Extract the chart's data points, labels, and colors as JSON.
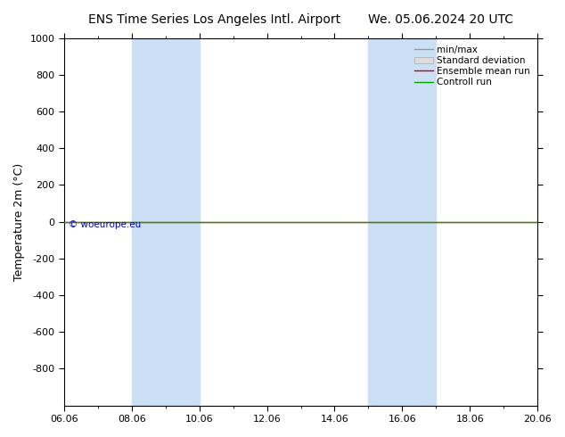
{
  "title_left": "ENS Time Series Los Angeles Intl. Airport",
  "title_right": "We. 05.06.2024 20 UTC",
  "ylabel": "Temperature 2m (°C)",
  "ylim_top": -1000,
  "ylim_bottom": 1000,
  "yticks": [
    -800,
    -600,
    -400,
    -200,
    0,
    200,
    400,
    600,
    800,
    1000
  ],
  "xtick_labels": [
    "06.06",
    "08.06",
    "10.06",
    "12.06",
    "14.06",
    "16.06",
    "18.06",
    "20.06"
  ],
  "xmin": 0,
  "xmax": 14,
  "shaded_bands": [
    {
      "xstart": 2.0,
      "xend": 2.67
    },
    {
      "xstart": 2.67,
      "xend": 4.0
    },
    {
      "xstart": 9.0,
      "xend": 10.0
    },
    {
      "xstart": 10.0,
      "xend": 11.0
    }
  ],
  "band_color": "#cce0f5",
  "control_run_y": 0,
  "ensemble_mean_y": 0,
  "control_run_color": "#00aa00",
  "ensemble_mean_color": "#cc0000",
  "minmax_color": "#999999",
  "stddev_color": "#cccccc",
  "copyright_text": "© woeurope.eu",
  "copyright_color": "#0000cc",
  "background_color": "#ffffff",
  "plot_bg_color": "#ffffff",
  "title_fontsize": 10,
  "ylabel_fontsize": 9,
  "tick_fontsize": 8,
  "legend_fontsize": 7.5
}
